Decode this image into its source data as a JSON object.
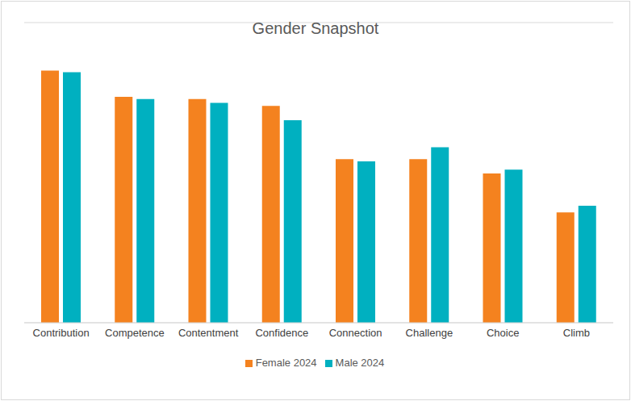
{
  "chart_data": {
    "type": "bar",
    "title": "Gender Snapshot",
    "categories": [
      "Contribution",
      "Competence",
      "Contentment",
      "Confidence",
      "Connection",
      "Challenge",
      "Choice",
      "Climb"
    ],
    "series": [
      {
        "name": "Female 2024",
        "color": "#f4821f",
        "values": [
          3.36,
          3.01,
          2.98,
          2.89,
          2.18,
          2.18,
          1.99,
          1.47
        ]
      },
      {
        "name": "Male 2024",
        "color": "#00b0c0",
        "values": [
          3.34,
          2.98,
          2.93,
          2.7,
          2.15,
          2.34,
          2.04,
          1.56
        ]
      }
    ],
    "ylim": [
      0,
      4
    ],
    "yticks": [
      0,
      0.5,
      1,
      1.5,
      2,
      2.5,
      3,
      3.5,
      4
    ],
    "grid": true,
    "legend": "bottom",
    "tick_labels": "x"
  }
}
